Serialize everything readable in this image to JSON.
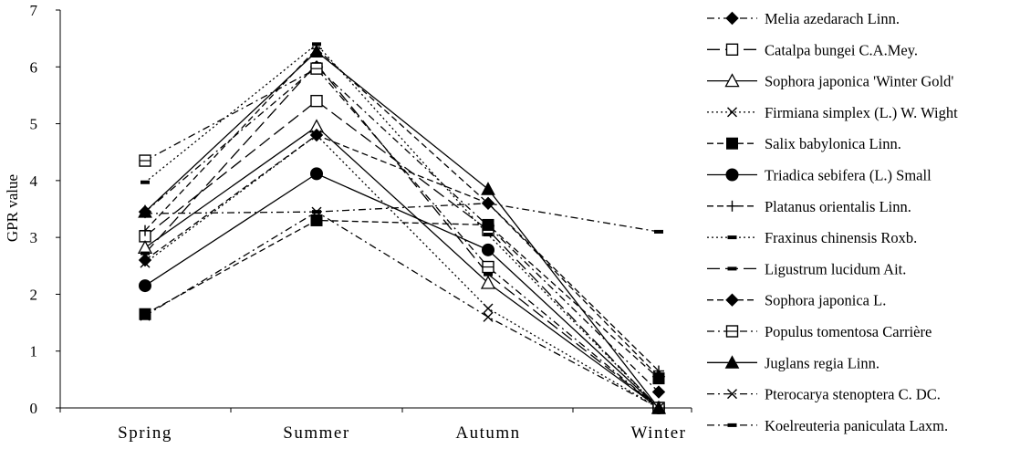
{
  "chart_data": {
    "type": "line",
    "title": "",
    "xlabel": "",
    "ylabel": "GPR value",
    "ylim": [
      0,
      7
    ],
    "yticks": [
      0,
      1,
      2,
      3,
      4,
      5,
      6,
      7
    ],
    "grid": false,
    "legend_position": "right",
    "categories": [
      "Spring",
      "Summer",
      "Autumn",
      "Winter"
    ],
    "series": [
      {
        "name": "Melia azedarach Linn.",
        "values": [
          3.45,
          6.0,
          3.2,
          0.28
        ],
        "dash": "dashdot",
        "marker": "diamond-filled"
      },
      {
        "name": "Catalpa bungei C.A.Mey.",
        "values": [
          3.02,
          5.4,
          3.13,
          0.0
        ],
        "dash": "longdash",
        "marker": "square-open"
      },
      {
        "name": "Sophora japonica 'Winter Gold'",
        "values": [
          2.82,
          4.95,
          2.2,
          0.0
        ],
        "dash": "solid",
        "marker": "triangle-open"
      },
      {
        "name": "Firmiana simplex (L.) W. Wight",
        "values": [
          2.55,
          4.8,
          1.75,
          0.0
        ],
        "dash": "dotted",
        "marker": "x"
      },
      {
        "name": "Salix babylonica Linn.",
        "values": [
          1.65,
          3.3,
          3.22,
          0.52
        ],
        "dash": "dashed",
        "marker": "square-filled"
      },
      {
        "name": "Triadica sebifera (L.) Small",
        "values": [
          2.15,
          4.12,
          2.78,
          0.0
        ],
        "dash": "solid",
        "marker": "circle-filled"
      },
      {
        "name": "Platanus orientalis Linn.",
        "values": [
          3.12,
          6.32,
          3.6,
          0.65
        ],
        "dash": "dashed",
        "marker": "plus"
      },
      {
        "name": "Fraxinus chinensis Roxb.",
        "values": [
          3.97,
          6.4,
          3.05,
          0.0
        ],
        "dash": "dotted",
        "marker": "dash"
      },
      {
        "name": "Ligustrum lucidum Ait.",
        "values": [
          2.72,
          6.05,
          2.35,
          0.0
        ],
        "dash": "longdash",
        "marker": "dash"
      },
      {
        "name": "Sophora japonica L.",
        "values": [
          2.6,
          4.8,
          3.6,
          0.55
        ],
        "dash": "dashed",
        "marker": "diamond-filled"
      },
      {
        "name": "Populus tomentosa Carrière",
        "values": [
          4.35,
          5.97,
          2.48,
          0.0
        ],
        "dash": "dashdot",
        "marker": "square-open-line"
      },
      {
        "name": "Juglans regia Linn.",
        "values": [
          3.45,
          6.27,
          3.85,
          0.0
        ],
        "dash": "solid",
        "marker": "triangle-filled"
      },
      {
        "name": "Pterocarya stenoptera C. DC.",
        "values": [
          1.62,
          3.45,
          1.6,
          0.0
        ],
        "dash": "dashdot",
        "marker": "x"
      },
      {
        "name": "Koelreuteria paniculata Laxm.",
        "values": [
          3.42,
          3.45,
          3.6,
          3.1
        ],
        "dash": "dashdot",
        "marker": "dash"
      }
    ]
  }
}
